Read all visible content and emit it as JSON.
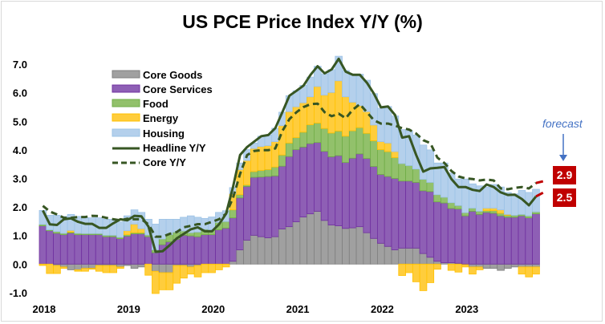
{
  "chart_data": {
    "type": "bar",
    "stacked": true,
    "title": "US PCE Price Index Y/Y (%)",
    "xlabel": "",
    "ylabel": "",
    "ylim": [
      -1.0,
      7.0
    ],
    "yticks": [
      "7.0",
      "6.0",
      "5.0",
      "4.0",
      "3.0",
      "2.0",
      "1.0",
      "0.0",
      "-1.0"
    ],
    "xtick_labels": [
      "2018",
      "2019",
      "2020",
      "2021",
      "2022",
      "2023"
    ],
    "x_start": "2018-01",
    "frequency": "monthly",
    "grid": false,
    "legend_position": "top-left",
    "series": [
      {
        "name": "Core Goods",
        "color": "#a0a0a0",
        "values": [
          0,
          0,
          -0.05,
          -0.1,
          -0.2,
          -0.2,
          -0.15,
          -0.15,
          -0.05,
          -0.05,
          -0.05,
          -0.1,
          -0.05,
          -0.15,
          -0.1,
          0,
          -0.25,
          -0.3,
          -0.3,
          -0.05,
          -0.05,
          -0.1,
          -0.05,
          0,
          0,
          0,
          0,
          0.1,
          0.5,
          0.84,
          1.01,
          0.96,
          0.92,
          0.96,
          1.23,
          1.31,
          1.48,
          1.65,
          1.76,
          1.85,
          1.53,
          1.37,
          1.34,
          1.25,
          1.27,
          1.31,
          1.1,
          0.9,
          0.73,
          0.62,
          0.5,
          0.56,
          0.56,
          0.56,
          0.37,
          0.24,
          0.1,
          0.05,
          0.05,
          0.03,
          -0.02,
          -0.1,
          -0.1,
          -0.15,
          -0.15,
          -0.22,
          -0.15,
          -0.1,
          -0.1,
          -0.1,
          -0.1
        ]
      },
      {
        "name": "Core Services",
        "color": "#8e5fb5",
        "values": [
          1.34,
          1.17,
          1.08,
          1.03,
          1.09,
          1.03,
          1.03,
          1.03,
          1.03,
          0.96,
          0.96,
          0.89,
          0.98,
          1.06,
          1.06,
          0.96,
          0.4,
          0.68,
          0.78,
          0.87,
          1.01,
          0.99,
          0.96,
          1.03,
          1.03,
          1.2,
          1.26,
          1.52,
          1.82,
          1.88,
          2.03,
          2.09,
          2.15,
          2.13,
          2.2,
          2.46,
          2.53,
          2.45,
          2.46,
          2.41,
          2.42,
          2.39,
          2.46,
          2.31,
          2.44,
          2.55,
          2.6,
          2.52,
          2.41,
          2.45,
          2.5,
          2.35,
          2.35,
          2.3,
          2.2,
          2.3,
          2.08,
          2.09,
          1.9,
          1.9,
          1.69,
          1.85,
          1.74,
          1.81,
          1.78,
          1.69,
          1.64,
          1.64,
          1.69,
          1.62,
          1.76
        ]
      },
      {
        "name": "Food",
        "color": "#92c16b",
        "values": [
          0.05,
          0.03,
          0.06,
          0.05,
          0.03,
          0.05,
          0.04,
          0.04,
          0.04,
          0.05,
          0.05,
          0.05,
          0.05,
          0.04,
          0.04,
          0.06,
          0.1,
          0.2,
          0.25,
          0.25,
          0.15,
          0.11,
          0.16,
          0.19,
          0.17,
          0.26,
          0.23,
          0.28,
          0.11,
          0.05,
          0.2,
          0.23,
          0.24,
          0.31,
          0.39,
          0.47,
          0.42,
          0.52,
          0.66,
          0.68,
          0.8,
          0.83,
          0.86,
          0.92,
          0.96,
          0.92,
          0.88,
          0.9,
          0.87,
          0.87,
          0.73,
          0.61,
          0.54,
          0.47,
          0.4,
          0.32,
          0.25,
          0.2,
          0.2,
          0.12,
          0.11,
          0.11,
          0.11,
          0.06,
          0.09,
          0.09,
          0.07,
          0.07,
          0.05,
          0.07,
          0.07
        ]
      },
      {
        "name": "Energy",
        "color": "#ffcd3c",
        "values": [
          -0.05,
          -0.33,
          -0.28,
          -0.05,
          0.06,
          -0.05,
          -0.1,
          -0.03,
          -0.2,
          -0.25,
          -0.25,
          -0.05,
          0.14,
          0.3,
          0.14,
          -0.39,
          -0.78,
          -0.6,
          -0.6,
          -0.62,
          -0.44,
          -0.25,
          -0.4,
          -0.3,
          -0.3,
          -0.2,
          -0.1,
          0.56,
          0.88,
          0.86,
          0.81,
          0.84,
          0.84,
          0.89,
          1.03,
          1.1,
          1.08,
          1.03,
          0.98,
          1.28,
          1.17,
          1.42,
          1.76,
          1.38,
          1.0,
          0.77,
          0.76,
          0.55,
          0.28,
          0.3,
          0.21,
          -0.4,
          -0.3,
          -0.62,
          -0.93,
          -0.65,
          -0.18,
          0,
          -0.22,
          -0.28,
          -0.08,
          -0.25,
          -0.1,
          0.09,
          0.09,
          0.12,
          0.03,
          0,
          -0.25,
          -0.35,
          -0.25
        ]
      },
      {
        "name": "Housing",
        "color": "#b4d0ec",
        "values": [
          0.49,
          0.51,
          0.57,
          0.59,
          0.56,
          0.59,
          0.55,
          0.55,
          0.55,
          0.56,
          0.56,
          0.54,
          0.52,
          0.5,
          0.57,
          0.55,
          0.9,
          0.69,
          0.54,
          0.45,
          0.48,
          0.59,
          0.52,
          0.38,
          0.45,
          0.35,
          0.38,
          0.22,
          0.23,
          0.38,
          0.19,
          0.36,
          0.37,
          0.47,
          0.47,
          0.56,
          0.56,
          0.61,
          0.69,
          0.71,
          0.74,
          0.8,
          0.86,
          0.92,
          0.96,
          1.1,
          1.1,
          1.1,
          1.17,
          1.28,
          1.25,
          1.19,
          1.21,
          1.19,
          1.2,
          1.14,
          1.11,
          1.2,
          1.04,
          0.93,
          1.18,
          0.85,
          0.89,
          0.74,
          0.83,
          0.8,
          0.77,
          0.75,
          0.84,
          0.82,
          0.79
        ]
      }
    ],
    "lines": [
      {
        "name": "Headline Y/Y",
        "color": "#375623",
        "style": "solid",
        "values": [
          1.88,
          1.39,
          1.37,
          1.57,
          1.6,
          1.48,
          1.41,
          1.41,
          1.27,
          1.27,
          1.43,
          1.57,
          1.53,
          1.69,
          1.67,
          1.31,
          0.43,
          0.45,
          0.66,
          0.9,
          1.06,
          1.22,
          1.29,
          1.15,
          1.15,
          1.39,
          1.76,
          2.7,
          3.82,
          4.1,
          4.29,
          4.48,
          4.52,
          4.76,
          5.32,
          5.9,
          6.07,
          6.25,
          6.63,
          6.93,
          6.68,
          6.82,
          7.19,
          6.74,
          6.63,
          6.63,
          6.35,
          5.97,
          5.49,
          5.52,
          5.22,
          4.43,
          4.48,
          3.82,
          3.24,
          3.35,
          3.37,
          3.4,
          2.98,
          2.7,
          2.7,
          2.6,
          2.56,
          2.79,
          2.7,
          2.51,
          2.42,
          2.43,
          2.28,
          2.06,
          2.37
        ],
        "forecast": 2.5
      },
      {
        "name": "Core Y/Y",
        "color": "#375623",
        "style": "dashed",
        "values": [
          2.04,
          1.84,
          1.74,
          1.62,
          1.62,
          1.65,
          1.65,
          1.69,
          1.68,
          1.62,
          1.57,
          1.53,
          1.59,
          1.57,
          1.57,
          1.39,
          0.96,
          0.96,
          1.06,
          1.12,
          1.29,
          1.34,
          1.4,
          1.4,
          1.48,
          1.57,
          1.76,
          2.32,
          3.16,
          3.82,
          3.96,
          3.99,
          3.99,
          4.05,
          4.66,
          5.08,
          5.32,
          5.5,
          5.6,
          5.62,
          5.32,
          5.18,
          5.27,
          5.11,
          5.41,
          5.6,
          5.32,
          5.04,
          4.92,
          4.92,
          4.85,
          4.76,
          4.71,
          4.57,
          4.34,
          4.24,
          3.73,
          3.54,
          3.26,
          3.07,
          3.0,
          2.98,
          2.93,
          2.96,
          2.93,
          2.65,
          2.62,
          2.67,
          2.7,
          2.65,
          2.84
        ],
        "forecast": 2.9
      }
    ],
    "forecast_color": "#c00000",
    "annotations": {
      "forecast_label": "forecast",
      "forecast_core": "2.9",
      "forecast_headline": "2.5"
    }
  }
}
